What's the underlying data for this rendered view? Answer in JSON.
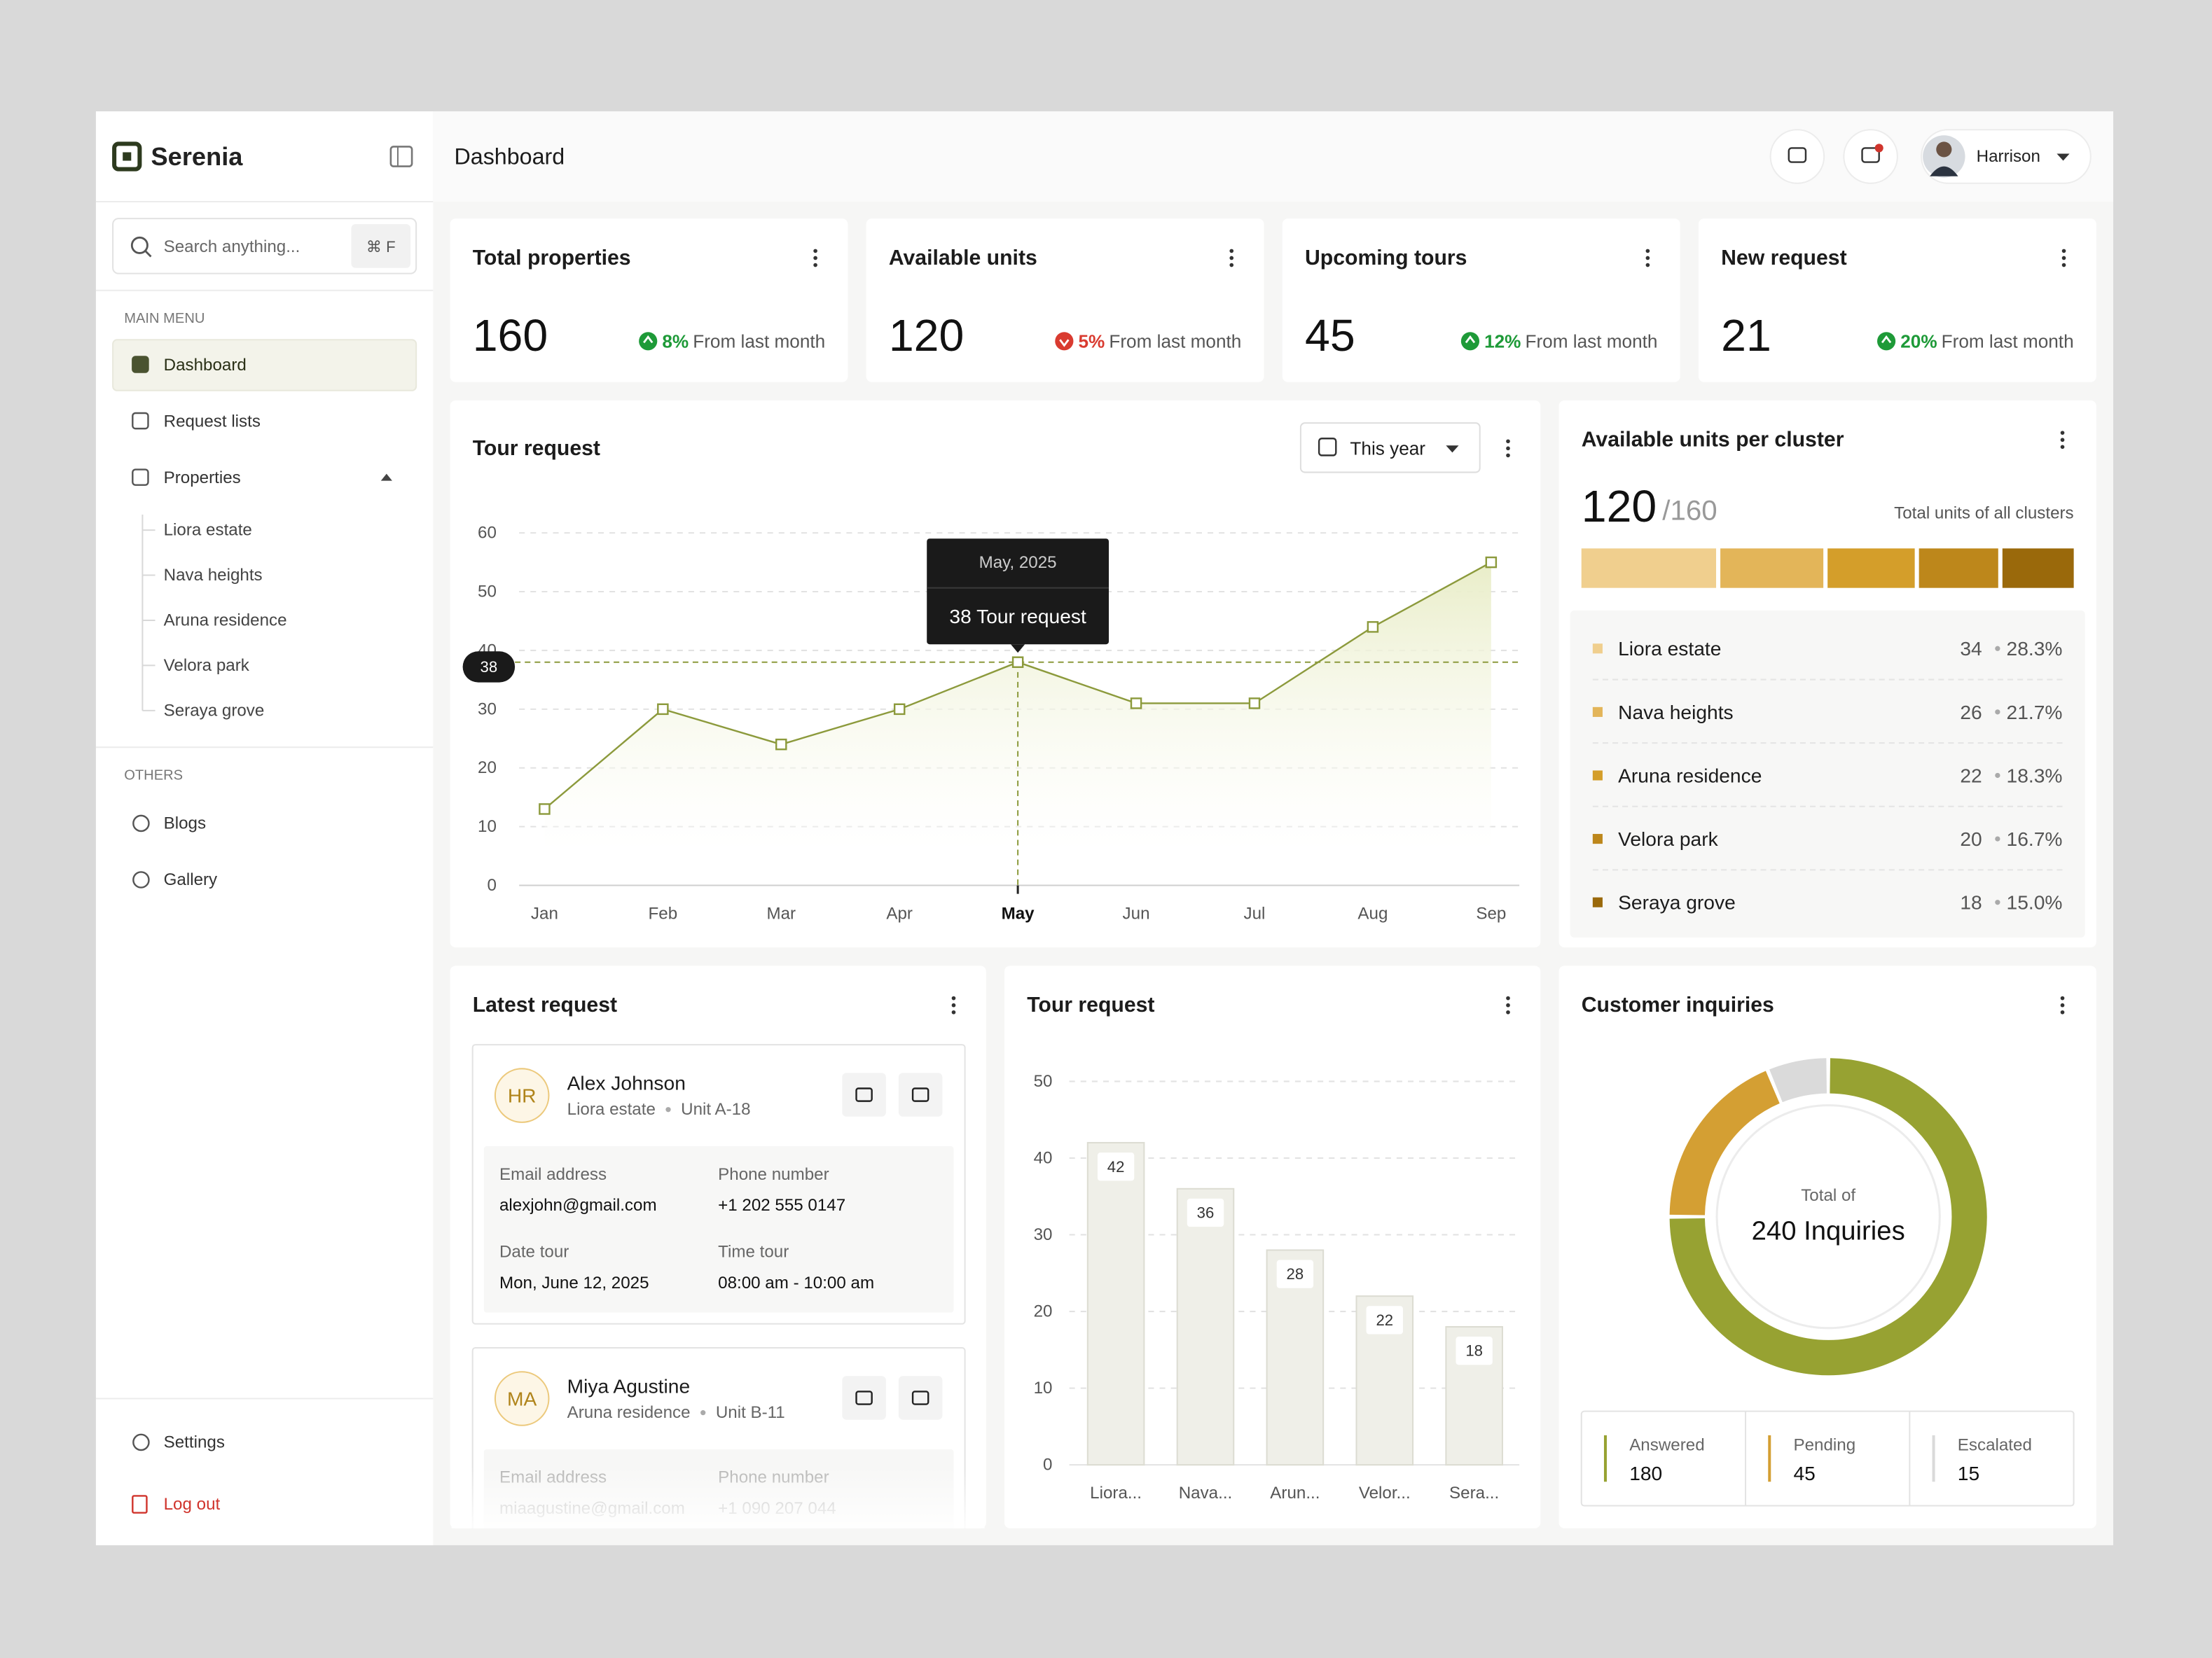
{
  "sidebar": {
    "brand": "Serenia",
    "search_placeholder": "Search anything...",
    "shortcut": "⌘ F",
    "main_menu_label": "MAIN MENU",
    "menu": [
      "Dashboard",
      "Request lists",
      "Properties"
    ],
    "properties": [
      "Liora estate",
      "Nava heights",
      "Aruna residence",
      "Velora park",
      "Seraya grove"
    ],
    "others_label": "OTHERS",
    "others": [
      "Blogs",
      "Gallery"
    ],
    "settings": "Settings",
    "logout": "Log out"
  },
  "header": {
    "title": "Dashboard",
    "user": "Harrison"
  },
  "stats": [
    {
      "title": "Total properties",
      "value": 160,
      "change": "8%",
      "direction": "up",
      "note": "From last month"
    },
    {
      "title": "Available units",
      "value": 120,
      "change": "5%",
      "direction": "down",
      "note": "From last month"
    },
    {
      "title": "Upcoming tours",
      "value": 45,
      "change": "12%",
      "direction": "up",
      "note": "From last month"
    },
    {
      "title": "New request",
      "value": 21,
      "change": "20%",
      "direction": "up",
      "note": "From last month"
    }
  ],
  "tour_chart": {
    "type": "line",
    "title": "Tour request",
    "filter": "This year",
    "categories": [
      "Jan",
      "Feb",
      "Mar",
      "Apr",
      "May",
      "Jun",
      "Jul",
      "Aug",
      "Sep"
    ],
    "values": [
      13,
      30,
      24,
      30,
      38,
      31,
      31,
      44,
      55
    ],
    "ylim": [
      0,
      60
    ],
    "yticks": [
      0,
      10,
      20,
      30,
      40,
      50,
      60
    ],
    "grid": true,
    "color": "#8c9a3c",
    "highlight": 4,
    "tooltip": {
      "title": "May, 2025",
      "label": "38 Tour request"
    }
  },
  "cluster": {
    "title": "Available units per cluster",
    "available": 120,
    "total_label": "/160",
    "note": "Total units of all clusters",
    "items": [
      {
        "name": "Liora estate",
        "value": 34,
        "percent": "28.3%",
        "color": "#f0cf8e"
      },
      {
        "name": "Nava heights",
        "value": 26,
        "percent": "21.7%",
        "color": "#e3b559"
      },
      {
        "name": "Aruna residence",
        "value": 22,
        "percent": "18.3%",
        "color": "#d49e2a"
      },
      {
        "name": "Velora park",
        "value": 20,
        "percent": "16.7%",
        "color": "#bd871b"
      },
      {
        "name": "Seraya grove",
        "value": 18,
        "percent": "15.0%",
        "color": "#9a690b"
      }
    ]
  },
  "latest": {
    "title": "Latest request",
    "requests": [
      {
        "initials": "HR",
        "name": "Alex Johnson",
        "property": "Liora estate",
        "unit": "Unit A-18",
        "fields": [
          {
            "label": "Email address",
            "value": "alexjohn@gmail.com"
          },
          {
            "label": "Phone number",
            "value": "+1 202 555 0147"
          },
          {
            "label": "Date tour",
            "value": "Mon, June 12, 2025"
          },
          {
            "label": "Time tour",
            "value": "08:00 am - 10:00 am"
          }
        ]
      },
      {
        "initials": "MA",
        "name": "Miya Agustine",
        "property": "Aruna residence",
        "unit": "Unit B-11",
        "fields": [
          {
            "label": "Email address",
            "value": "miaagustine@gmail.com"
          },
          {
            "label": "Phone number",
            "value": "+1 090 207 044"
          }
        ]
      }
    ]
  },
  "bar_chart": {
    "type": "bar",
    "title": "Tour request",
    "categories": [
      "Liora...",
      "Nava...",
      "Arun...",
      "Velor...",
      "Sera..."
    ],
    "values": [
      42,
      36,
      28,
      22,
      18
    ],
    "ylim": [
      0,
      50
    ],
    "yticks": [
      0,
      10,
      20,
      30,
      40,
      50
    ],
    "grid": true,
    "color": "#efefe8"
  },
  "inquiries": {
    "type": "donut",
    "title": "Customer inquiries",
    "center_label": "Total of",
    "center_value": "240 Inquiries",
    "categories": [
      "Answered",
      "Pending",
      "Escalated"
    ],
    "values": [
      180,
      45,
      15
    ],
    "colors": [
      "#97a232",
      "#d49f33",
      "#dadada"
    ]
  }
}
